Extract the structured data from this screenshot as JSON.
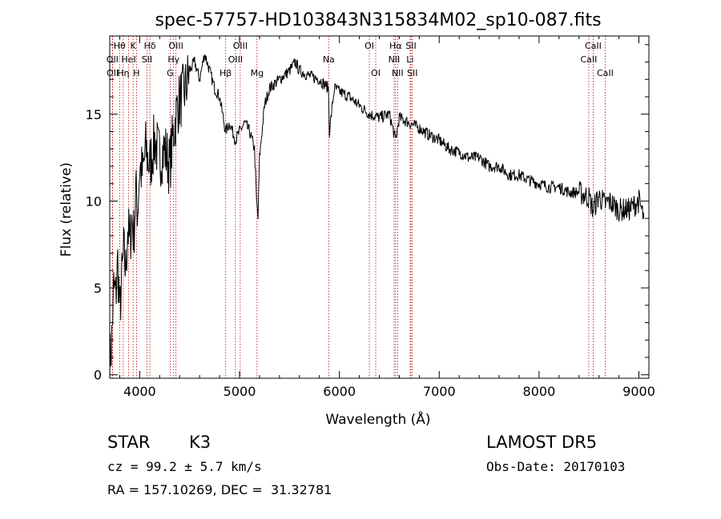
{
  "chart_data": {
    "type": "line",
    "title": "spec-57757-HD103843N315834M02_sp10-087.fits",
    "xlabel": "Wavelength (Å)",
    "ylabel": "Flux (relative)",
    "xlim": [
      3700,
      9100
    ],
    "ylim": [
      -0.2,
      19.5
    ],
    "xticks": [
      4000,
      5000,
      6000,
      7000,
      8000,
      9000
    ],
    "xtick_labels": [
      "4000",
      "5000",
      "6000",
      "7000",
      "8000",
      "9000"
    ],
    "yticks": [
      0,
      5,
      10,
      15
    ],
    "ytick_labels": [
      "0",
      "5",
      "10",
      "15"
    ],
    "grid": false,
    "legend": "none",
    "colors": {
      "line": "#000000",
      "marker": "#c00000",
      "axes": "#000000"
    },
    "series": [
      {
        "x": [
          3700,
          3720,
          3740,
          3760,
          3780,
          3800,
          3820,
          3840,
          3860,
          3880,
          3900,
          3920,
          3940,
          3960,
          3980,
          4000,
          4030,
          4060,
          4100,
          4150,
          4200,
          4250,
          4300,
          4340,
          4380,
          4420,
          4460,
          4500,
          4550,
          4600,
          4650,
          4700,
          4750,
          4800,
          4860,
          4900,
          4960,
          5000,
          5050,
          5100,
          5150,
          5170,
          5185,
          5200,
          5250,
          5300,
          5400,
          5500,
          5560,
          5600,
          5700,
          5800,
          5890,
          5900,
          5950,
          6000,
          6100,
          6200,
          6300,
          6400,
          6500,
          6563,
          6600,
          6700,
          6800,
          6900,
          7000,
          7100,
          7200,
          7300,
          7400,
          7500,
          7600,
          7700,
          7800,
          7900,
          8000,
          8100,
          8200,
          8300,
          8400,
          8500,
          8540,
          8600,
          8660,
          8700,
          8800,
          8900,
          9000,
          9050
        ],
        "y": [
          0.5,
          2.0,
          5.0,
          4.5,
          6.5,
          3.5,
          5.5,
          7.0,
          6.0,
          8.5,
          7.5,
          9.0,
          8.0,
          10.5,
          9.5,
          12.0,
          11.5,
          13.0,
          12.0,
          13.5,
          12.5,
          13.0,
          12.0,
          14.0,
          15.5,
          16.0,
          16.5,
          17.5,
          18.0,
          17.0,
          18.5,
          17.5,
          16.5,
          16.0,
          14.0,
          14.5,
          13.5,
          14.0,
          14.5,
          14.0,
          13.0,
          10.0,
          9.0,
          12.5,
          15.5,
          16.5,
          17.0,
          17.5,
          18.0,
          17.5,
          17.2,
          17.0,
          16.5,
          14.0,
          16.5,
          16.3,
          16.0,
          15.5,
          15.0,
          14.8,
          15.0,
          13.5,
          14.8,
          14.5,
          14.2,
          13.8,
          13.5,
          13.0,
          12.8,
          12.5,
          12.5,
          12.0,
          12.0,
          11.5,
          11.5,
          11.2,
          11.0,
          10.8,
          10.8,
          10.5,
          10.5,
          10.2,
          9.5,
          10.3,
          9.8,
          10.0,
          9.5,
          9.5,
          10.0,
          9.0
        ]
      }
    ],
    "lines": [
      {
        "label": "Hθ",
        "x": 3798,
        "row": 0
      },
      {
        "label": "OII",
        "x": 3727,
        "row": 1
      },
      {
        "label": "OII",
        "x": 3729,
        "row": 2
      },
      {
        "label": "HeI",
        "x": 3889,
        "row": 1
      },
      {
        "label": "Hη",
        "x": 3835,
        "row": 2
      },
      {
        "label": "K",
        "x": 3934,
        "row": 0
      },
      {
        "label": "H",
        "x": 3968,
        "row": 2
      },
      {
        "label": "Hδ",
        "x": 4102,
        "row": 0
      },
      {
        "label": "SII",
        "x": 4072,
        "row": 1
      },
      {
        "label": "OIII",
        "x": 4363,
        "row": 0
      },
      {
        "label": "Hγ",
        "x": 4340,
        "row": 1
      },
      {
        "label": "G",
        "x": 4305,
        "row": 2
      },
      {
        "label": "OIII",
        "x": 5007,
        "row": 0
      },
      {
        "label": "OIII",
        "x": 4959,
        "row": 1
      },
      {
        "label": "Hβ",
        "x": 4861,
        "row": 2
      },
      {
        "label": "Mg",
        "x": 5175,
        "row": 2
      },
      {
        "label": "Na",
        "x": 5893,
        "row": 1
      },
      {
        "label": "OI",
        "x": 6300,
        "row": 0
      },
      {
        "label": "OI",
        "x": 6364,
        "row": 2
      },
      {
        "label": "Hα",
        "x": 6563,
        "row": 0
      },
      {
        "label": "NII",
        "x": 6548,
        "row": 1
      },
      {
        "label": "NII",
        "x": 6583,
        "row": 2
      },
      {
        "label": "SII",
        "x": 6717,
        "row": 0
      },
      {
        "label": "Li",
        "x": 6708,
        "row": 1
      },
      {
        "label": "SII",
        "x": 6731,
        "row": 2
      },
      {
        "label": "CaII",
        "x": 8542,
        "row": 0
      },
      {
        "label": "CaII",
        "x": 8498,
        "row": 1
      },
      {
        "label": "CaII",
        "x": 8662,
        "row": 2
      }
    ]
  },
  "info": {
    "object_type": "STAR",
    "subclass": "K3",
    "survey": "LAMOST DR5",
    "cz": "cz = 99.2 ± 5.7 km/s",
    "obs_date": "Obs-Date: 20170103",
    "coords": "RA = 157.10269, DEC =  31.32781"
  }
}
